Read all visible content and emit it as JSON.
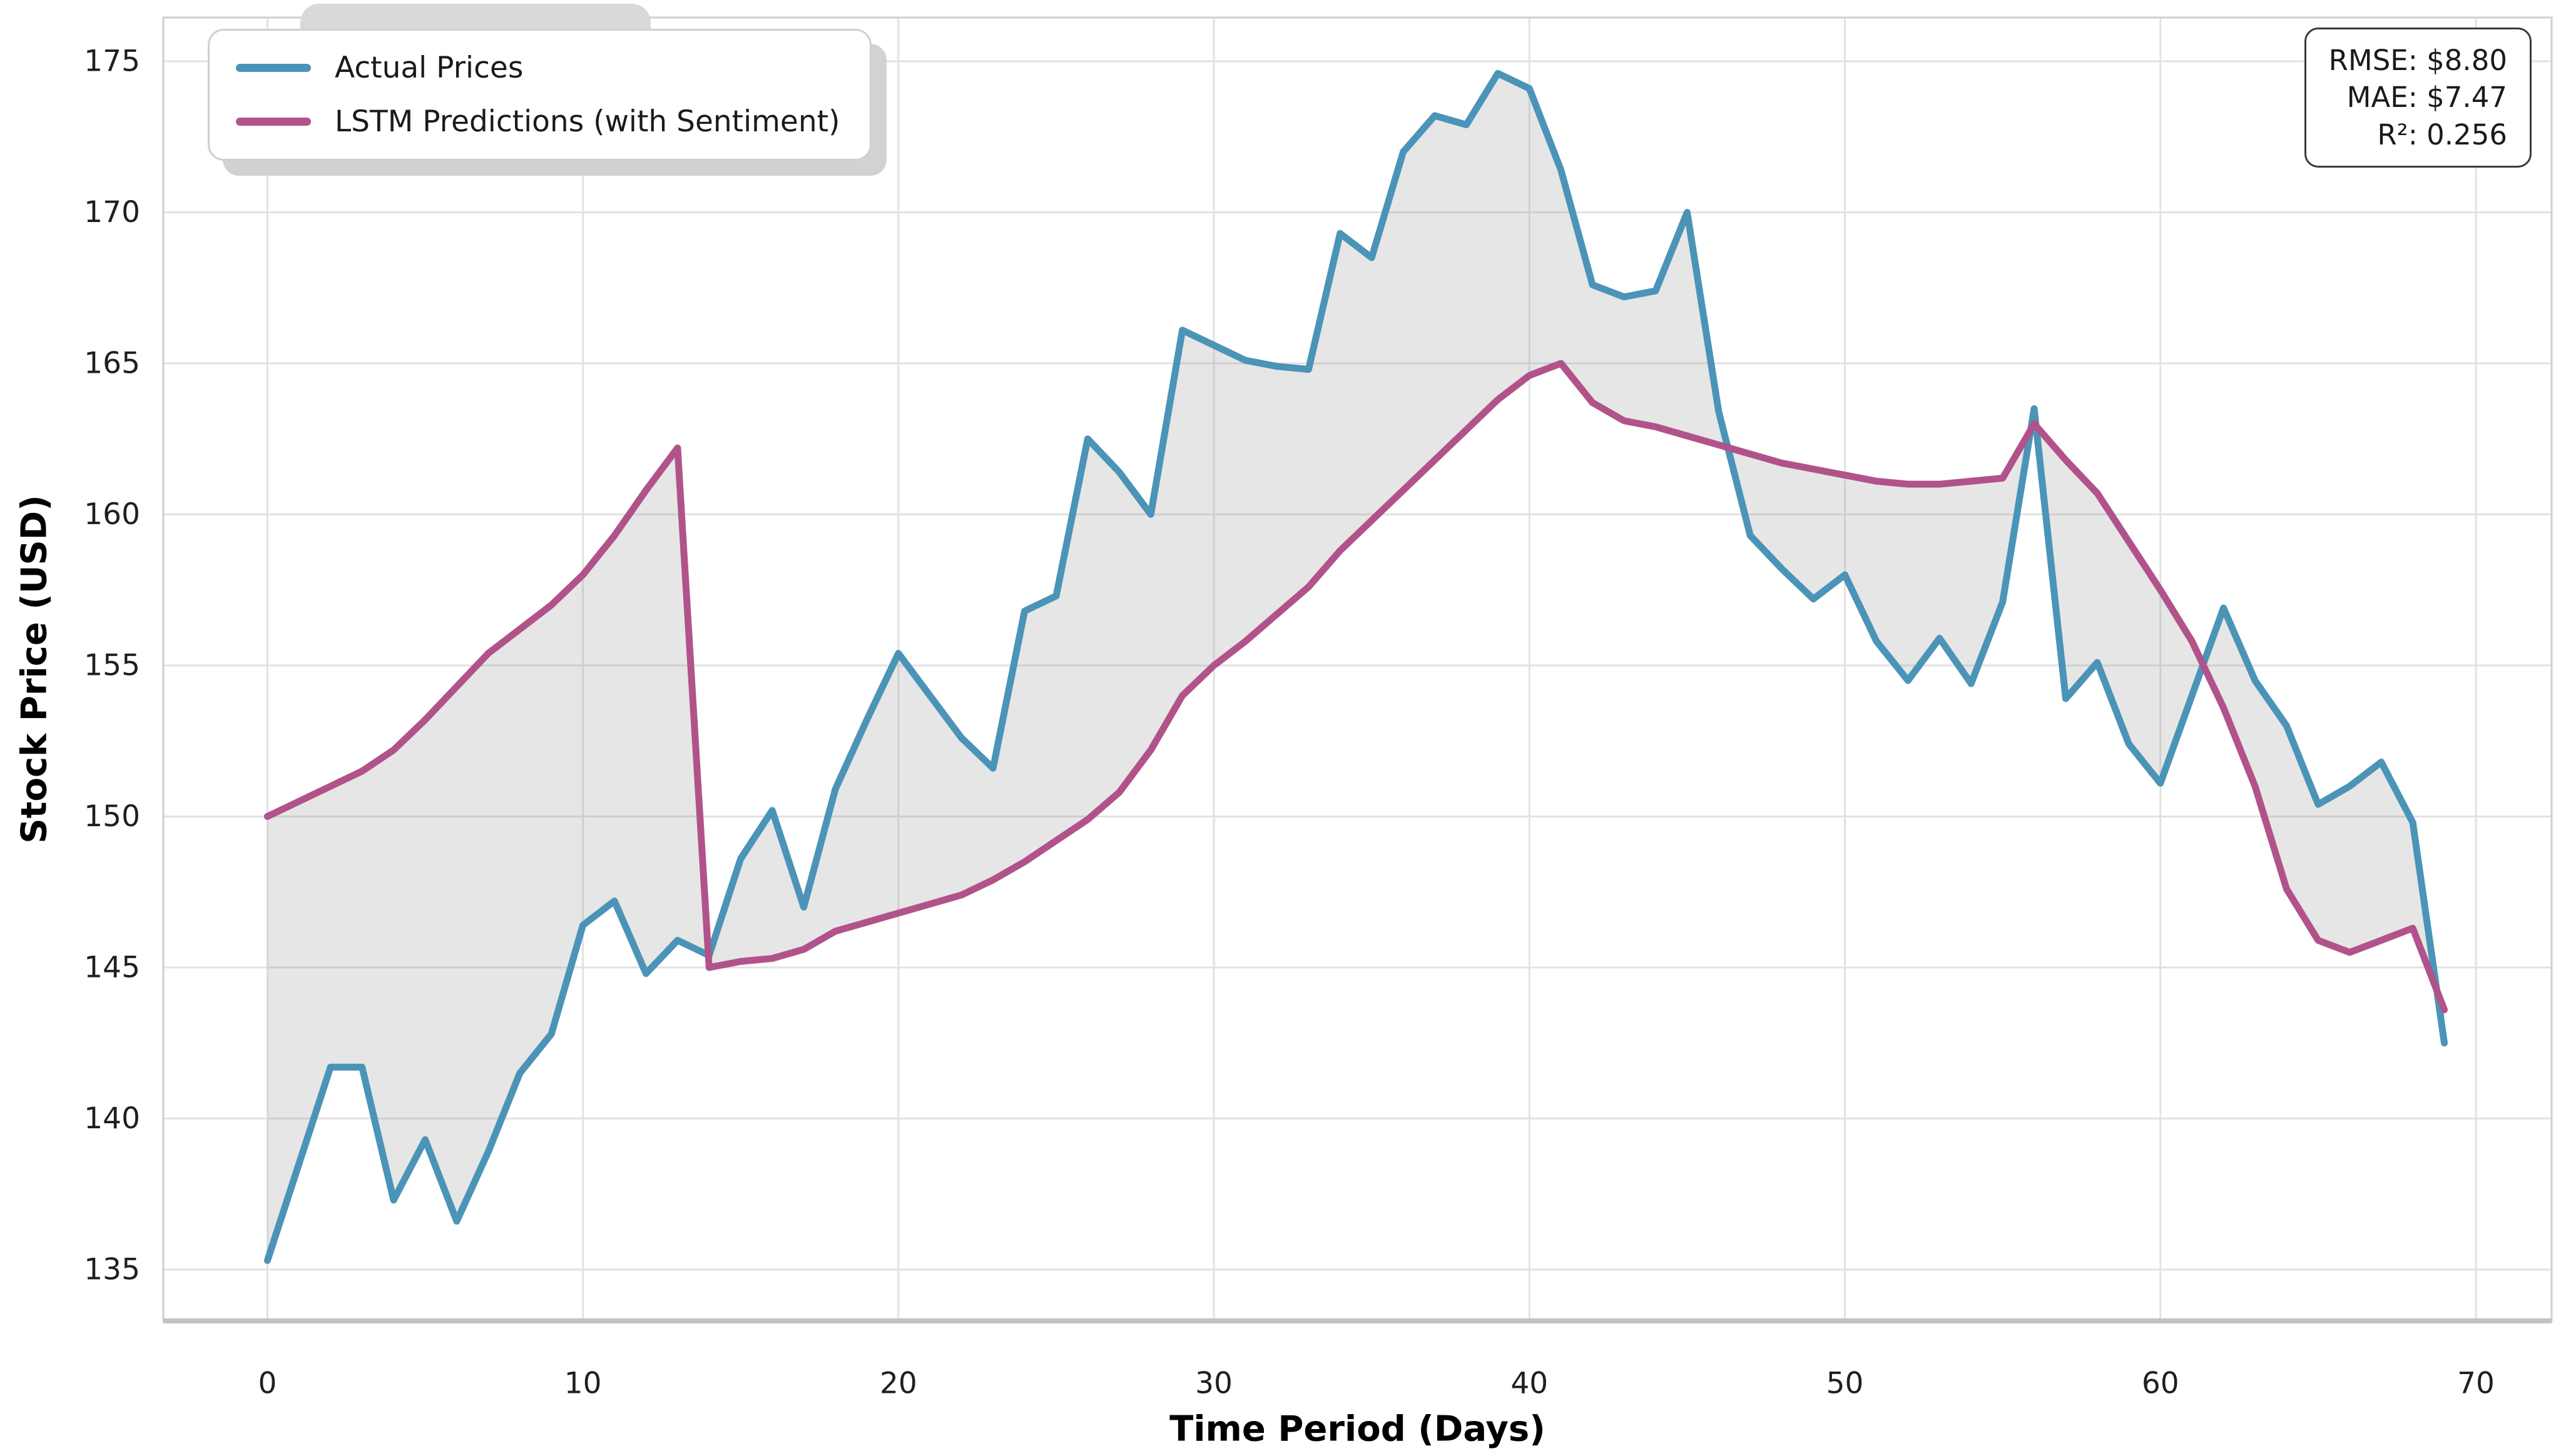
{
  "chart_data": {
    "type": "line",
    "x": [
      0,
      1,
      2,
      3,
      4,
      5,
      6,
      7,
      8,
      9,
      10,
      11,
      12,
      13,
      14,
      15,
      16,
      17,
      18,
      19,
      20,
      21,
      22,
      23,
      24,
      25,
      26,
      27,
      28,
      29,
      30,
      31,
      32,
      33,
      34,
      35,
      36,
      37,
      38,
      39,
      40,
      41,
      42,
      43,
      44,
      45,
      46,
      47,
      48,
      49,
      50,
      51,
      52,
      53,
      54,
      55,
      56,
      57,
      58,
      59,
      60,
      61,
      62,
      63,
      64,
      65,
      66,
      67,
      68,
      69
    ],
    "series": [
      {
        "name": "Actual Prices",
        "color": "#4b94b7",
        "values": [
          135.3,
          138.5,
          141.7,
          141.7,
          137.3,
          139.3,
          136.6,
          138.9,
          141.5,
          142.8,
          146.4,
          147.2,
          144.8,
          145.9,
          145.4,
          148.6,
          150.2,
          147.0,
          150.9,
          153.2,
          155.4,
          154.0,
          152.6,
          151.6,
          156.8,
          157.3,
          162.5,
          161.4,
          160.0,
          166.1,
          165.6,
          165.1,
          164.9,
          164.8,
          169.3,
          168.5,
          172.0,
          173.2,
          172.9,
          174.6,
          174.1,
          171.4,
          167.6,
          167.2,
          167.4,
          170.0,
          163.4,
          159.3,
          158.2,
          157.2,
          158.0,
          155.8,
          154.5,
          155.9,
          154.4,
          157.1,
          163.5,
          153.9,
          155.1,
          152.4,
          151.1,
          154.0,
          156.9,
          154.5,
          153.0,
          150.4,
          151.0,
          151.8,
          149.8,
          142.5
        ]
      },
      {
        "name": "LSTM Predictions (with Sentiment)",
        "color": "#b1538a",
        "values": [
          150.0,
          150.5,
          151.0,
          151.5,
          152.2,
          153.2,
          154.3,
          155.4,
          156.2,
          157.0,
          158.0,
          159.3,
          160.8,
          162.2,
          145.0,
          145.2,
          145.3,
          145.6,
          146.2,
          146.5,
          146.8,
          147.1,
          147.4,
          147.9,
          148.5,
          149.2,
          149.9,
          150.8,
          152.2,
          154.0,
          155.0,
          155.8,
          156.7,
          157.6,
          158.8,
          159.8,
          160.8,
          161.8,
          162.8,
          163.8,
          164.6,
          165.0,
          163.7,
          163.1,
          162.9,
          162.6,
          162.3,
          162.0,
          161.7,
          161.5,
          161.3,
          161.1,
          161.0,
          161.0,
          161.1,
          161.2,
          163.0,
          161.8,
          160.7,
          159.1,
          157.5,
          155.8,
          153.6,
          151.0,
          147.6,
          145.9,
          145.5,
          145.9,
          146.3,
          143.6
        ]
      }
    ],
    "fill_between": {
      "between": [
        "Actual Prices",
        "LSTM Predictions (with Sentiment)"
      ],
      "color": "#8f8f8f",
      "opacity": 0.22
    },
    "xlabel": "Time Period (Days)",
    "ylabel": "Stock Price (USD)",
    "xticks": [
      0,
      10,
      20,
      30,
      40,
      50,
      60,
      70
    ],
    "yticks": [
      135,
      140,
      145,
      150,
      155,
      160,
      165,
      170,
      175
    ],
    "xlim": [
      -3.3,
      72.4
    ],
    "ylim": [
      133.3,
      176.45
    ],
    "grid": true,
    "legend_position": "upper left"
  },
  "legend": {
    "items": [
      {
        "label": "Actual Prices",
        "color": "#4b94b7"
      },
      {
        "label": "LSTM Predictions (with Sentiment)",
        "color": "#b1538a"
      }
    ]
  },
  "stats_box": {
    "lines": [
      "RMSE: $8.80",
      "MAE: $7.47",
      "R²: 0.256"
    ]
  },
  "style": {
    "grid_color": "#e2e2e2",
    "spine_color": "#cfcfcf",
    "bottom_spine_color": "#c2c2c2",
    "tick_color": "#1f1f1f",
    "line_width": 11
  }
}
